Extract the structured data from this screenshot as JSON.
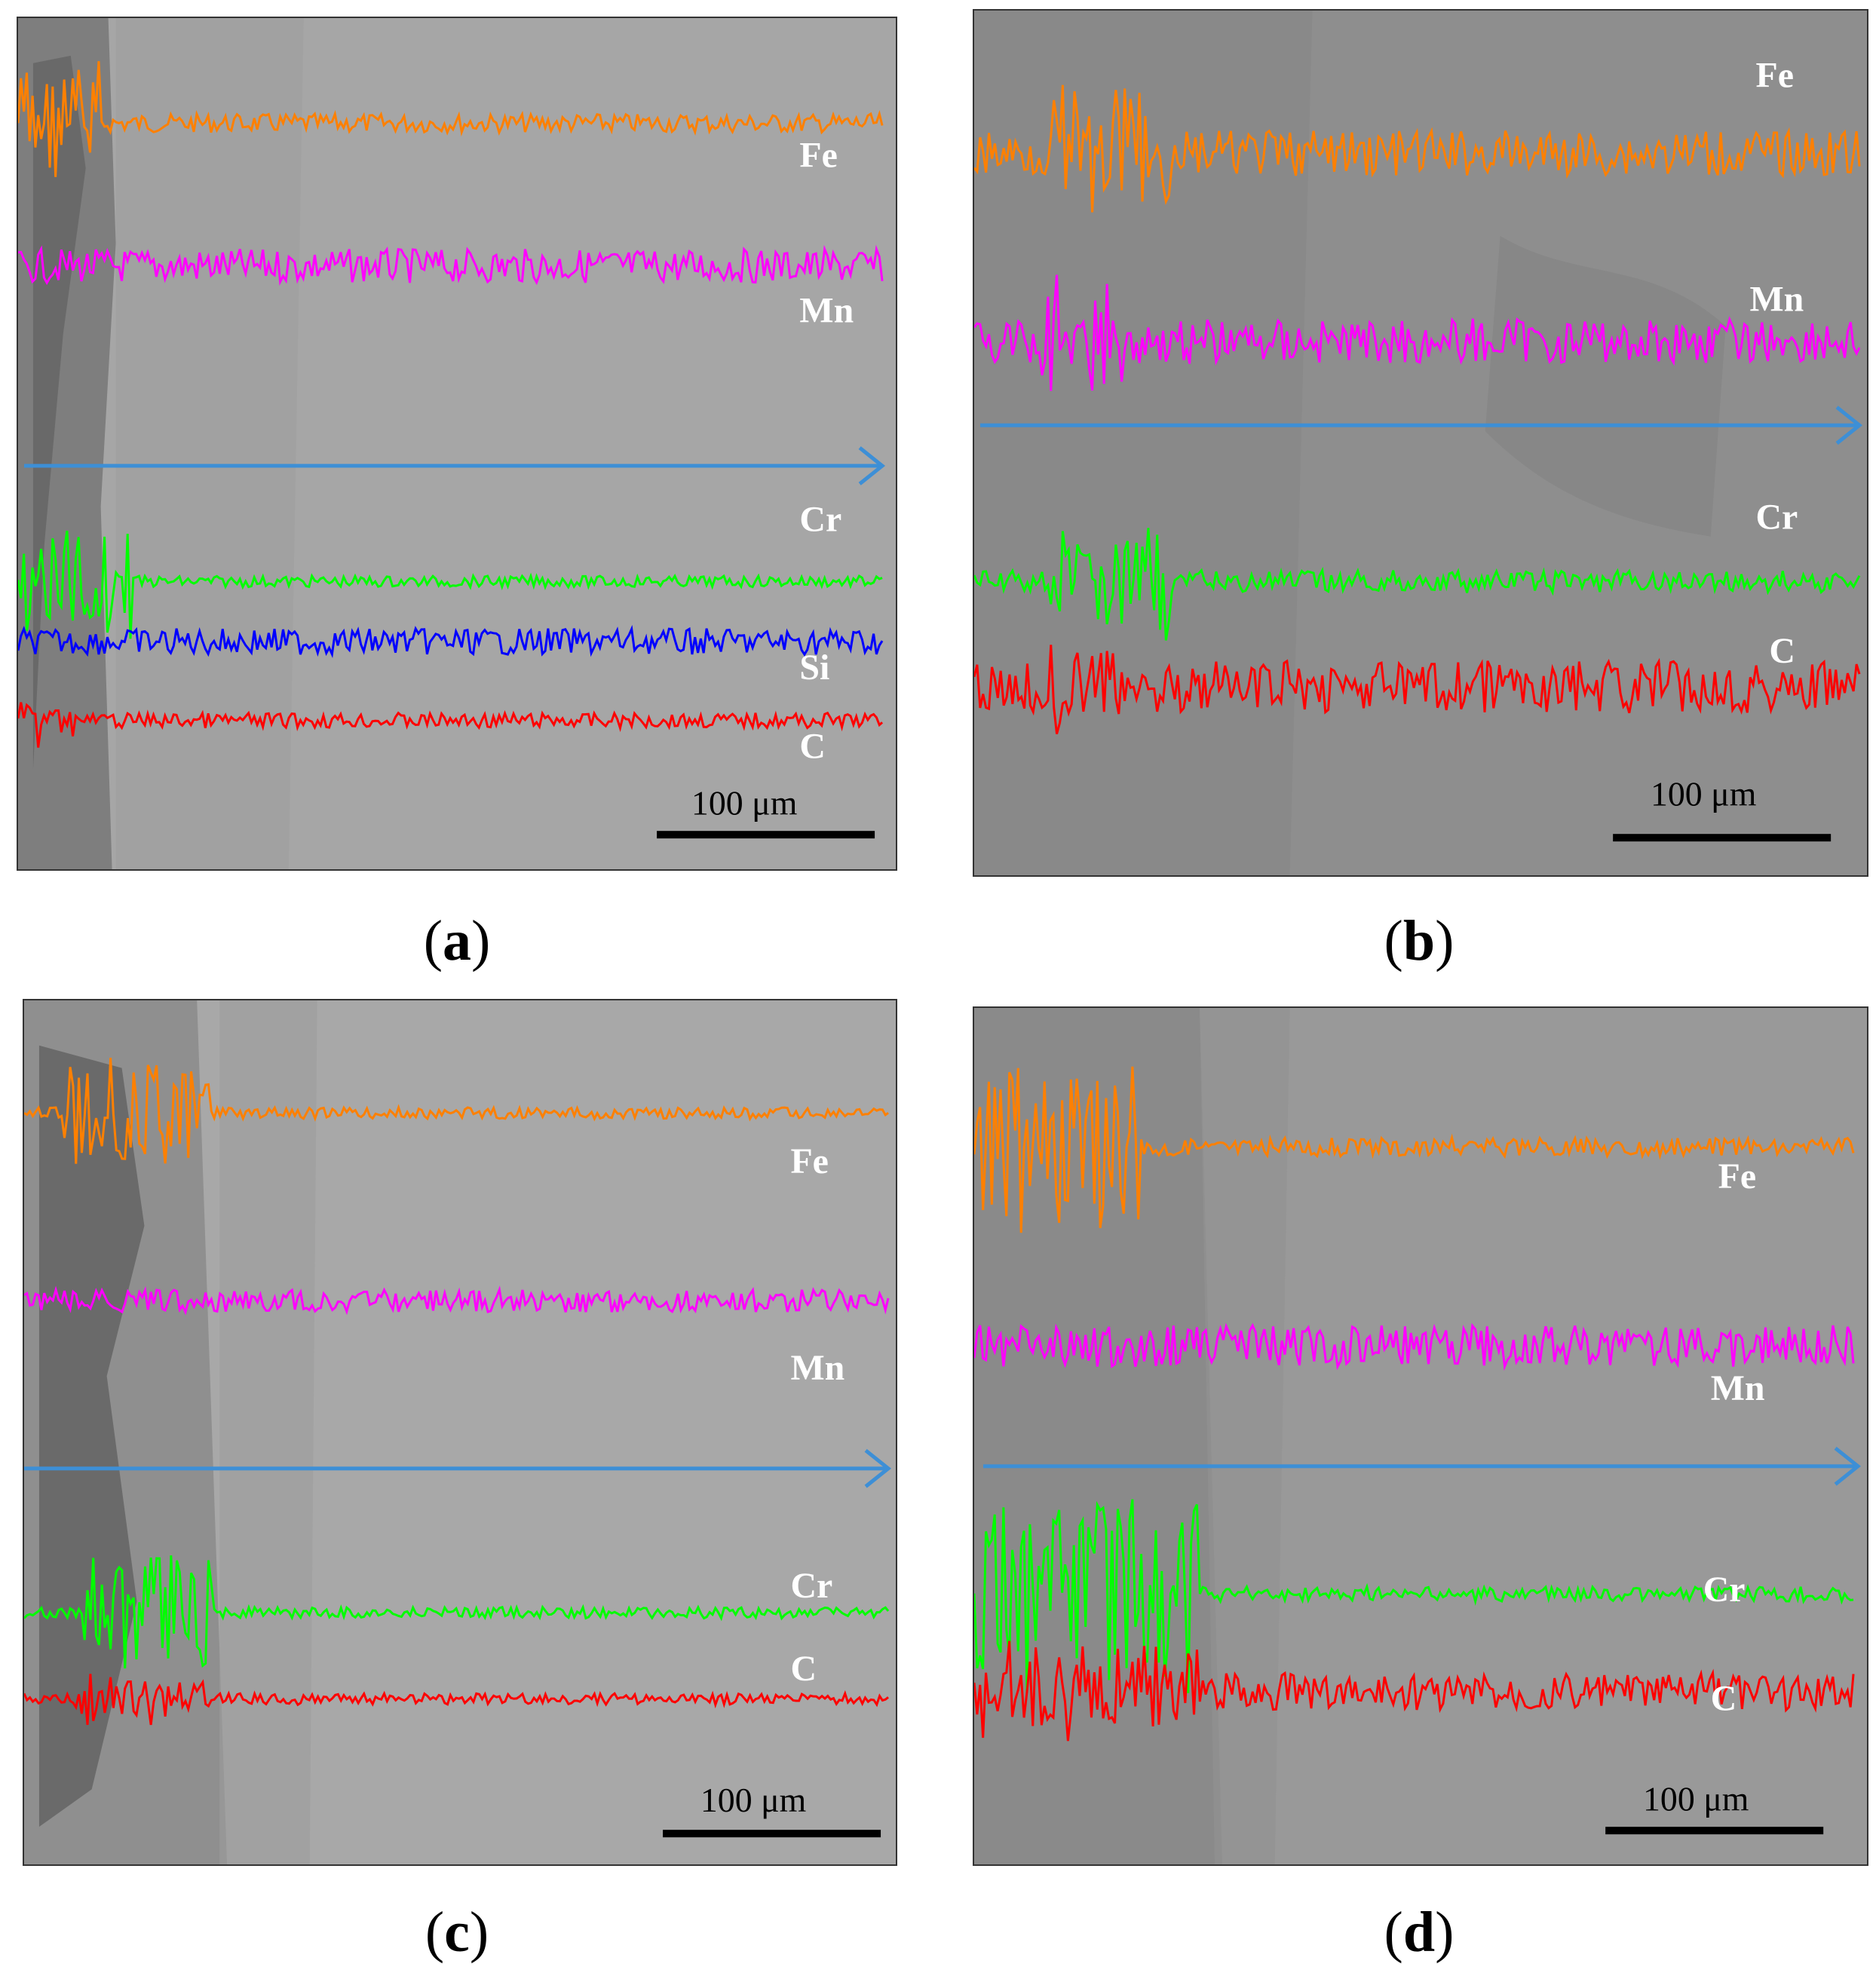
{
  "panels": [
    {
      "id": "a",
      "caption": "a",
      "elements": [
        "Fe",
        "Mn",
        "Cr",
        "Si",
        "C"
      ],
      "scale_bar": "100 μm",
      "background": "#a6a6a6",
      "lines": [
        {
          "element": "Fe",
          "color": "#ff8000"
        },
        {
          "element": "Mn",
          "color": "#ff00ff"
        },
        {
          "element": "Cr",
          "color": "#00ff00"
        },
        {
          "element": "Si",
          "color": "#0000ff"
        },
        {
          "element": "C",
          "color": "#ff0000"
        }
      ]
    },
    {
      "id": "b",
      "caption": "b",
      "elements": [
        "Fe",
        "Mn",
        "Cr",
        "C"
      ],
      "scale_bar": "100 μm",
      "background": "#8e8e8e",
      "lines": [
        {
          "element": "Fe",
          "color": "#ff8000"
        },
        {
          "element": "Mn",
          "color": "#ff00ff"
        },
        {
          "element": "Cr",
          "color": "#00ff00"
        },
        {
          "element": "C",
          "color": "#ff0000"
        }
      ]
    },
    {
      "id": "c",
      "caption": "c",
      "elements": [
        "Fe",
        "Mn",
        "Cr",
        "C"
      ],
      "scale_bar": "100 μm",
      "background": "#a8a8a8",
      "lines": [
        {
          "element": "Fe",
          "color": "#ff8000"
        },
        {
          "element": "Mn",
          "color": "#ff00ff"
        },
        {
          "element": "Cr",
          "color": "#00ff00"
        },
        {
          "element": "C",
          "color": "#ff0000"
        }
      ]
    },
    {
      "id": "d",
      "caption": "d",
      "elements": [
        "Fe",
        "Mn",
        "Cr",
        "C"
      ],
      "scale_bar": "100 μm",
      "background": "#999999",
      "lines": [
        {
          "element": "Fe",
          "color": "#ff8000"
        },
        {
          "element": "Mn",
          "color": "#ff00ff"
        },
        {
          "element": "Cr",
          "color": "#00ff00"
        },
        {
          "element": "C",
          "color": "#ff0000"
        }
      ]
    }
  ],
  "scan_arrow_color": "#3d8fd6",
  "label_color": "#ffffff"
}
